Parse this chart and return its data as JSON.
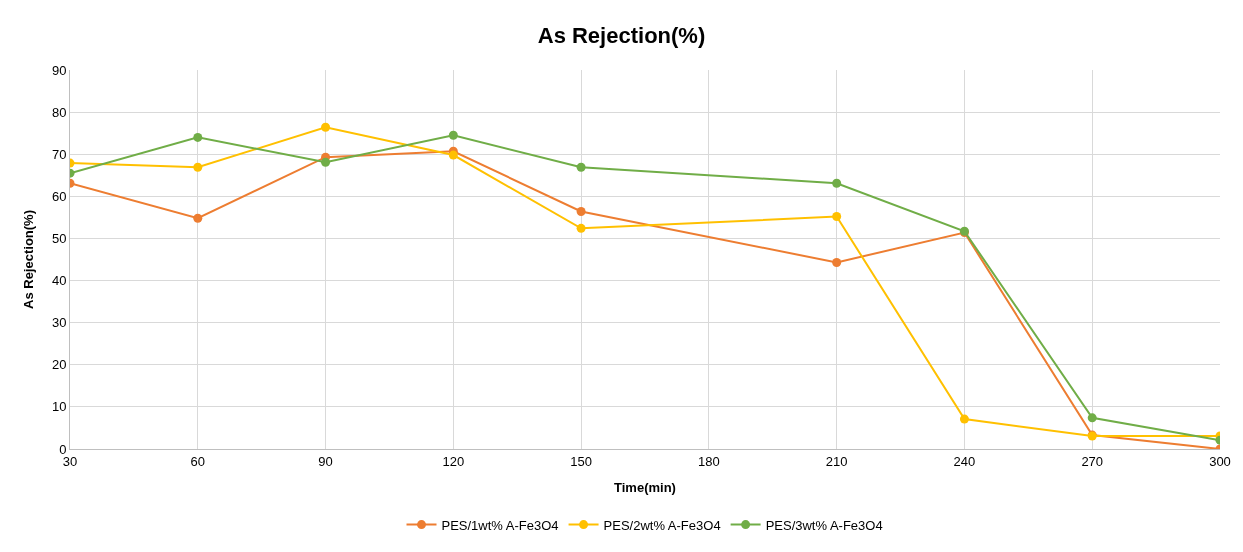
{
  "chart_data": {
    "type": "line",
    "title": "As Rejection(%)",
    "xlabel": "Time(min)",
    "ylabel": "As Rejection(%)",
    "x": [
      30,
      60,
      90,
      120,
      150,
      210,
      240,
      270,
      300
    ],
    "series": [
      {
        "name": "PES/1wt% A-Fe3O4",
        "color": "#ed7d31",
        "values": [
          63.1,
          54.8,
          69.3,
          70.7,
          56.4,
          44.3,
          51.4,
          3.3,
          0
        ]
      },
      {
        "name": "PES/2wt% A-Fe3O4",
        "color": "#ffc000",
        "values": [
          67.9,
          66.9,
          76.4,
          69.8,
          52.4,
          55.2,
          7.1,
          3.1,
          3.1
        ]
      },
      {
        "name": "PES/3wt% A-Fe3O4",
        "color": "#70ad47",
        "values": [
          65.5,
          74.0,
          68.1,
          74.5,
          66.9,
          63.1,
          51.7,
          7.4,
          2.1
        ]
      }
    ],
    "xlim": [
      30,
      300
    ],
    "xticks": [
      30,
      60,
      90,
      120,
      150,
      180,
      210,
      240,
      270,
      300
    ],
    "ylim": [
      0,
      90
    ],
    "yticks": [
      0,
      10,
      20,
      30,
      40,
      50,
      60,
      70,
      80,
      90
    ],
    "grid": true,
    "legend": "bottom",
    "marker": "circle",
    "line_style": "solid"
  }
}
